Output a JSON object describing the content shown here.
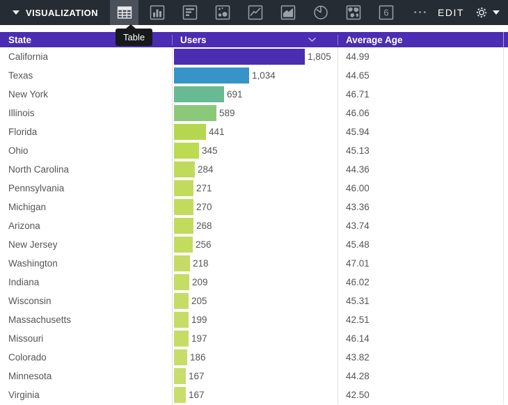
{
  "toolbar": {
    "visualization_label": "VISUALIZATION",
    "edit_label": "EDIT",
    "more_label": "•••",
    "single_value_digit": "6",
    "icons": [
      "table",
      "column-chart",
      "bar-chart",
      "scatter",
      "line-chart",
      "area-chart",
      "pie-chart",
      "map",
      "single-value",
      "more"
    ],
    "selected_icon": "table",
    "bg_color": "#262c33",
    "selected_icon_bg": "#4a515a"
  },
  "tooltip": {
    "label": "Table"
  },
  "table": {
    "header_bg": "#4a2db2",
    "columns": [
      {
        "label": "State"
      },
      {
        "label": "Users",
        "sort_icon": "chevron-down"
      },
      {
        "label": "Average Age"
      }
    ],
    "max_users": 1805,
    "rows": [
      {
        "state": "California",
        "users": "1,805",
        "users_value": 1805,
        "avg_age": "44.99",
        "bar_color": "#4b2db2"
      },
      {
        "state": "Texas",
        "users": "1,034",
        "users_value": 1034,
        "avg_age": "44.65",
        "bar_color": "#3794c8"
      },
      {
        "state": "New York",
        "users": "691",
        "users_value": 691,
        "avg_age": "46.71",
        "bar_color": "#67ba93"
      },
      {
        "state": "Illinois",
        "users": "589",
        "users_value": 589,
        "avg_age": "46.06",
        "bar_color": "#8cc87a"
      },
      {
        "state": "Florida",
        "users": "441",
        "users_value": 441,
        "avg_age": "45.94",
        "bar_color": "#b5d74f"
      },
      {
        "state": "Ohio",
        "users": "345",
        "users_value": 345,
        "avg_age": "45.13",
        "bar_color": "#bcda52"
      },
      {
        "state": "North Carolina",
        "users": "284",
        "users_value": 284,
        "avg_age": "44.36",
        "bar_color": "#c0db5b"
      },
      {
        "state": "Pennsylvania",
        "users": "271",
        "users_value": 271,
        "avg_age": "46.00",
        "bar_color": "#c1db5d"
      },
      {
        "state": "Michigan",
        "users": "270",
        "users_value": 270,
        "avg_age": "43.36",
        "bar_color": "#c1db5d"
      },
      {
        "state": "Arizona",
        "users": "268",
        "users_value": 268,
        "avg_age": "43.74",
        "bar_color": "#c1db5d"
      },
      {
        "state": "New Jersey",
        "users": "256",
        "users_value": 256,
        "avg_age": "45.48",
        "bar_color": "#c2dc5f"
      },
      {
        "state": "Washington",
        "users": "218",
        "users_value": 218,
        "avg_age": "47.01",
        "bar_color": "#c4dc64"
      },
      {
        "state": "Indiana",
        "users": "209",
        "users_value": 209,
        "avg_age": "46.02",
        "bar_color": "#c4dd65"
      },
      {
        "state": "Wisconsin",
        "users": "205",
        "users_value": 205,
        "avg_age": "45.31",
        "bar_color": "#c5dd66"
      },
      {
        "state": "Massachusetts",
        "users": "199",
        "users_value": 199,
        "avg_age": "42.51",
        "bar_color": "#c5dd67"
      },
      {
        "state": "Missouri",
        "users": "197",
        "users_value": 197,
        "avg_age": "46.14",
        "bar_color": "#c5dd67"
      },
      {
        "state": "Colorado",
        "users": "186",
        "users_value": 186,
        "avg_age": "43.82",
        "bar_color": "#c6dd69"
      },
      {
        "state": "Minnesota",
        "users": "167",
        "users_value": 167,
        "avg_age": "44.28",
        "bar_color": "#c7de6c"
      },
      {
        "state": "Virginia",
        "users": "167",
        "users_value": 167,
        "avg_age": "42.50",
        "bar_color": "#c7de6c"
      }
    ]
  }
}
